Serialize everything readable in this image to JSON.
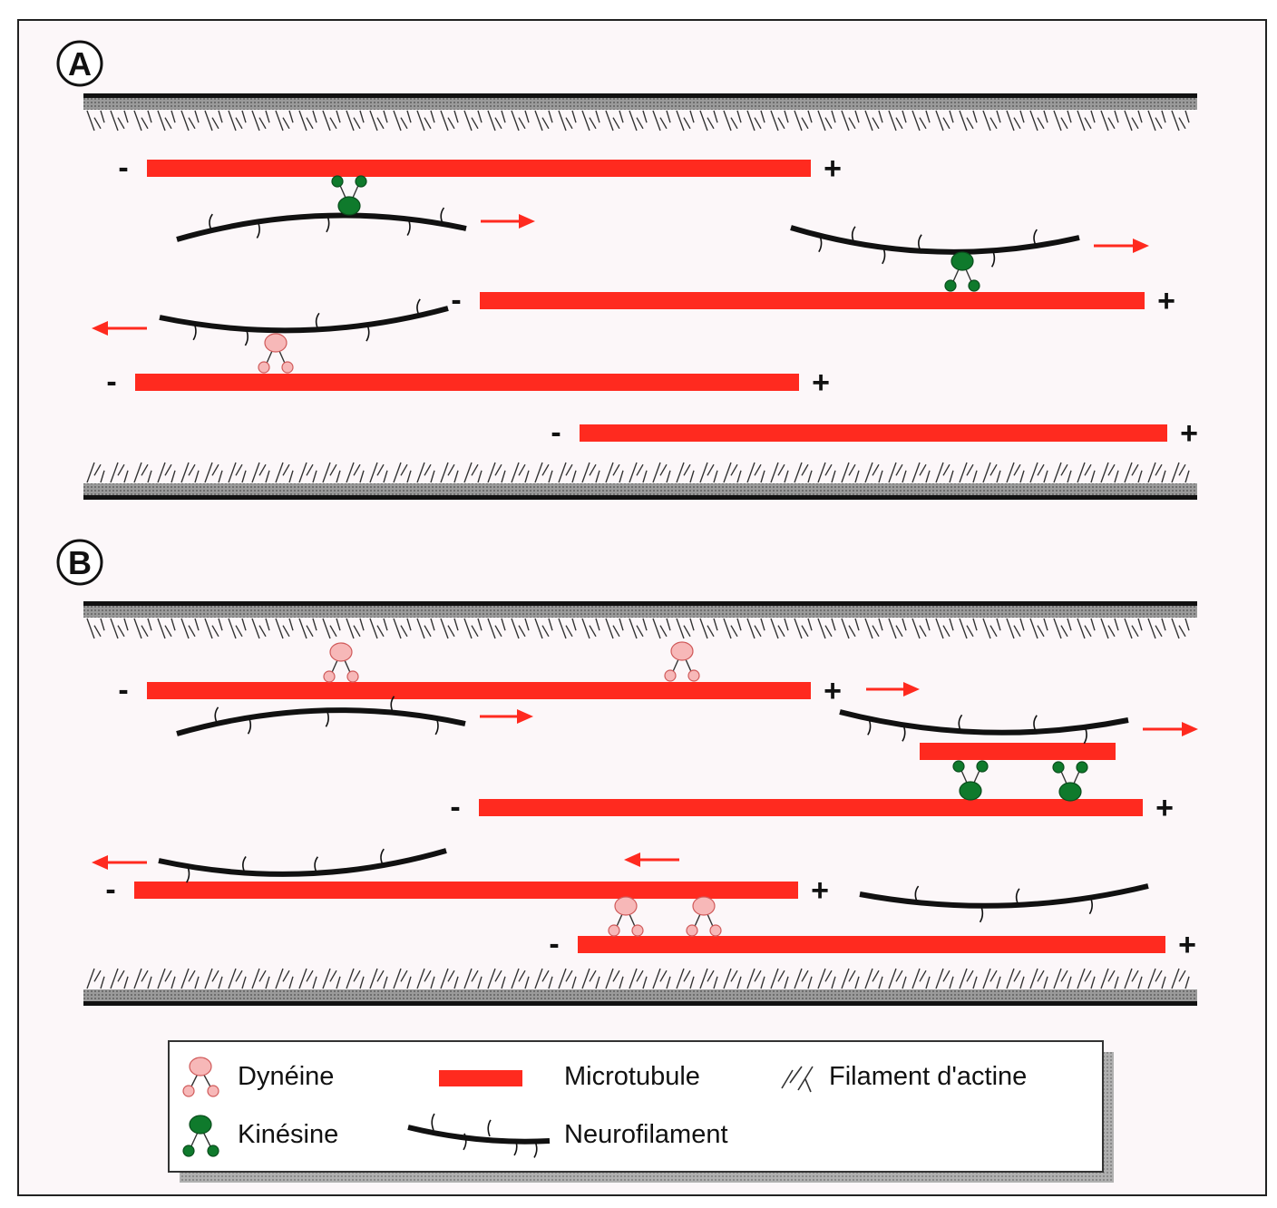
{
  "colors": {
    "microtubule": "#ff2a1f",
    "kinesin": "#0f7a2c",
    "dynein": "#f7b8b8",
    "dynein_stroke": "#d05a5a",
    "neurofilament": "#111111",
    "arrow": "#ff2a1f",
    "membrane": "#7a7a7a",
    "panel_bg": "#fcf7f9"
  },
  "panels": {
    "a": {
      "label": "A"
    },
    "b": {
      "label": "B"
    }
  },
  "signs": {
    "minus": "-",
    "plus": "+"
  },
  "legend": {
    "dynein": {
      "icon": "dynein-icon",
      "label": "Dynéine"
    },
    "kinesin": {
      "icon": "kinesin-icon",
      "label": "Kinésine"
    },
    "microtubule": {
      "icon": "microtubule-swatch",
      "label": "Microtubule"
    },
    "neurofilament": {
      "icon": "neurofilament-swatch",
      "label": "Neurofilament"
    },
    "actin": {
      "icon": "actin-filament-icon",
      "label": "Filament d'actine"
    }
  }
}
